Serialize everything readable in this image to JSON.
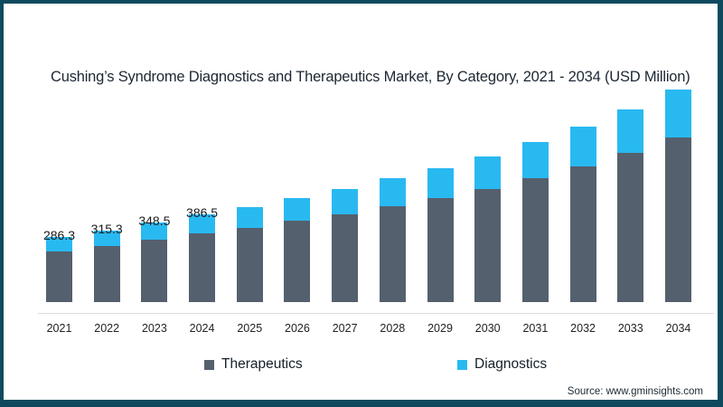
{
  "title": "Cushing’s Syndrome Diagnostics and Therapeutics Market, By Category, 2021 - 2034 (USD Million)",
  "source": "Source: www.gminsights.com",
  "colors": {
    "frame": "#0e4a5e",
    "background": "#ffffff",
    "therapeutics": "#55606e",
    "diagnostics": "#29b9f1",
    "axis_line": "#dcdcdc",
    "title_text": "#1c2733"
  },
  "legend": {
    "items": [
      {
        "label": "Therapeutics",
        "color": "#55606e"
      },
      {
        "label": "Diagnostics",
        "color": "#29b9f1"
      }
    ],
    "position": "bottom"
  },
  "chart_data": {
    "type": "bar",
    "stacked": true,
    "title": "Cushing’s Syndrome Diagnostics and Therapeutics Market, By Category, 2021 - 2034 (USD Million)",
    "xlabel": "",
    "ylabel": "USD Million",
    "ylim": [
      0,
      1000
    ],
    "grid": false,
    "legend_position": "bottom",
    "categories": [
      "2021",
      "2022",
      "2023",
      "2024",
      "2025",
      "2026",
      "2027",
      "2028",
      "2029",
      "2030",
      "2031",
      "2032",
      "2033",
      "2034"
    ],
    "series": [
      {
        "name": "Therapeutics",
        "color": "#55606e",
        "values": [
          223.3,
          246.3,
          272.5,
          302.5,
          325,
          357,
          387,
          423,
          457,
          499,
          546,
          598,
          658,
          725
        ]
      },
      {
        "name": "Diagnostics",
        "color": "#29b9f1",
        "values": [
          63,
          69,
          76,
          84,
          92,
          100,
          110,
          120,
          131,
          143,
          157,
          172,
          189,
          208
        ]
      }
    ],
    "totals": [
      286.3,
      315.3,
      348.5,
      386.5,
      417,
      457,
      497,
      543,
      588,
      642,
      703,
      770,
      847,
      933
    ],
    "data_labels": [
      "286.3",
      "315.3",
      "348.5",
      "386.5",
      "",
      "",
      "",
      "",
      "",
      "",
      "",
      "",
      "",
      ""
    ]
  }
}
